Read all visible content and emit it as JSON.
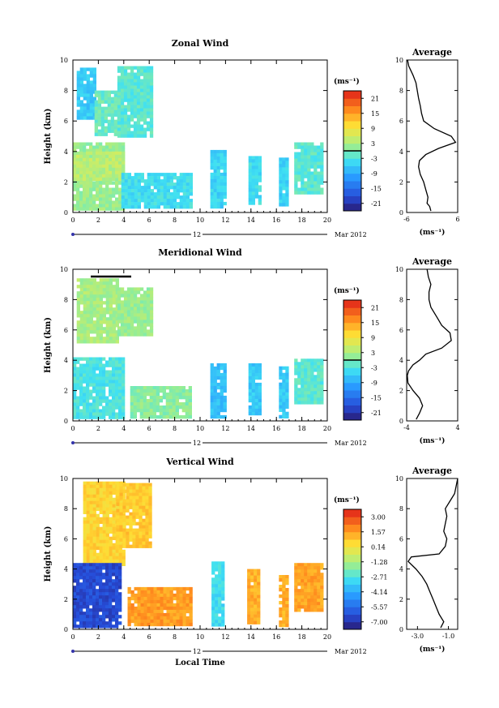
{
  "chart_data": [
    {
      "type": "heatmap",
      "title": "Zonal Wind",
      "xlabel": "",
      "ylabel": "Height (km)",
      "xlim": [
        0,
        20
      ],
      "ylim": [
        0,
        10
      ],
      "x_ticks": [
        "0",
        "2",
        "4",
        "6",
        "8",
        "10",
        "12",
        "14",
        "16",
        "18",
        "20"
      ],
      "y_ticks": [
        "0",
        "2",
        "4",
        "6",
        "8",
        "10"
      ],
      "date_day": "12",
      "date_label": "Mar 2012",
      "colorbar": {
        "unit": "(ms⁻¹)",
        "ticks": [
          "-21",
          "-15",
          "-9",
          "-3",
          "3",
          "9",
          "15",
          "21"
        ],
        "range": [
          -24,
          24
        ],
        "zero_line": 0
      },
      "data_blocks": [
        {
          "x": [
            0.3,
            1.7
          ],
          "y": [
            6.3,
            9.5
          ],
          "value": -6
        },
        {
          "x": [
            1.7,
            3.5
          ],
          "y": [
            5.2,
            8.0
          ],
          "value": -1
        },
        {
          "x": [
            3.5,
            6.2
          ],
          "y": [
            5.0,
            9.6
          ],
          "value": -2
        },
        {
          "x": [
            0.0,
            3.9
          ],
          "y": [
            0.3,
            4.6
          ],
          "value": 2
        },
        {
          "x": [
            0.0,
            3.9
          ],
          "y": [
            2.2,
            4.0
          ],
          "value": 4
        },
        {
          "x": [
            3.8,
            9.3
          ],
          "y": [
            0.3,
            2.6
          ],
          "value": -4
        },
        {
          "x": [
            10.8,
            11.9
          ],
          "y": [
            0.3,
            4.1
          ],
          "value": -5
        },
        {
          "x": [
            13.8,
            14.7
          ],
          "y": [
            0.6,
            3.7
          ],
          "value": -4
        },
        {
          "x": [
            16.2,
            16.9
          ],
          "y": [
            0.6,
            3.6
          ],
          "value": -5
        },
        {
          "x": [
            17.4,
            19.5
          ],
          "y": [
            1.2,
            4.6
          ],
          "value": -2
        }
      ],
      "average": {
        "title": "Average",
        "xlabel": "(ms⁻¹)",
        "xlim": [
          -6,
          6
        ],
        "x_ticks": [
          "-6",
          "6"
        ],
        "ylim": [
          0,
          10
        ],
        "y_ticks": [
          "0",
          "2",
          "4",
          "6",
          "8",
          "10"
        ],
        "x": [
          -0.3,
          -0.6,
          -1.2,
          -1.0,
          -1.5,
          -2.0,
          -2.8,
          -3.2,
          -3.0,
          -1.5,
          1.5,
          5.5,
          4.5,
          0.5,
          -2.0,
          -2.5,
          -2.8,
          -3.2,
          -3.5,
          -3.8,
          -4.5,
          -5.0,
          -5.5,
          -5.8
        ],
        "y": [
          0.1,
          0.4,
          0.6,
          1.0,
          1.5,
          2.0,
          2.5,
          3.0,
          3.4,
          3.8,
          4.2,
          4.6,
          5.0,
          5.5,
          6.0,
          6.5,
          7.0,
          7.5,
          8.0,
          8.5,
          9.0,
          9.3,
          9.6,
          10.0
        ]
      }
    },
    {
      "type": "heatmap",
      "title": "Meridional Wind",
      "xlabel": "",
      "ylabel": "Height (km)",
      "xlim": [
        0,
        20
      ],
      "ylim": [
        0,
        10
      ],
      "x_ticks": [
        "0",
        "2",
        "4",
        "6",
        "8",
        "10",
        "12",
        "14",
        "16",
        "18",
        "20"
      ],
      "y_ticks": [
        "0",
        "2",
        "4",
        "6",
        "8",
        "10"
      ],
      "date_day": "12",
      "date_label": "Mar 2012",
      "colorbar": {
        "unit": "(ms⁻¹)",
        "ticks": [
          "-21",
          "-15",
          "-9",
          "-3",
          "3",
          "9",
          "15",
          "21"
        ],
        "range": [
          -24,
          24
        ],
        "zero_line": 0
      },
      "data_blocks": [
        {
          "x": [
            0.3,
            3.5
          ],
          "y": [
            5.3,
            9.4
          ],
          "value": 3
        },
        {
          "x": [
            3.5,
            6.2
          ],
          "y": [
            5.6,
            8.8
          ],
          "value": 2
        },
        {
          "x": [
            0.0,
            3.9
          ],
          "y": [
            0.3,
            4.2
          ],
          "value": -3
        },
        {
          "x": [
            4.5,
            9.3
          ],
          "y": [
            0.3,
            2.3
          ],
          "value": 1
        },
        {
          "x": [
            10.8,
            11.9
          ],
          "y": [
            0.3,
            3.8
          ],
          "value": -7
        },
        {
          "x": [
            13.8,
            14.6
          ],
          "y": [
            0.5,
            3.8
          ],
          "value": -6
        },
        {
          "x": [
            16.2,
            16.8
          ],
          "y": [
            0.3,
            3.6
          ],
          "value": -6
        },
        {
          "x": [
            17.4,
            19.5
          ],
          "y": [
            1.2,
            4.1
          ],
          "value": -2
        }
      ],
      "average": {
        "title": "Average",
        "xlabel": "(ms⁻¹)",
        "xlim": [
          -4,
          4
        ],
        "x_ticks": [
          "-4",
          "4"
        ],
        "ylim": [
          0,
          10
        ],
        "y_ticks": [
          "0",
          "2",
          "4",
          "6",
          "8",
          "10"
        ],
        "x": [
          -2.5,
          -2.0,
          -1.5,
          -2.0,
          -3.0,
          -3.8,
          -3.9,
          -3.7,
          -3.0,
          -2.0,
          -1.0,
          1.5,
          3.0,
          2.8,
          1.5,
          0.8,
          -0.2,
          -0.5,
          -0.5,
          -0.2,
          -0.6,
          -0.8
        ],
        "y": [
          0.1,
          0.5,
          1.0,
          1.5,
          2.0,
          2.5,
          3.0,
          3.3,
          3.7,
          4.0,
          4.4,
          4.8,
          5.3,
          5.8,
          6.3,
          6.8,
          7.5,
          8.0,
          8.5,
          9.0,
          9.5,
          10.0
        ]
      }
    },
    {
      "type": "heatmap",
      "title": "Vertical Wind",
      "xlabel": "Local Time",
      "ylabel": "Height (km)",
      "xlim": [
        0,
        20
      ],
      "ylim": [
        0,
        10
      ],
      "x_ticks": [
        "0",
        "2",
        "4",
        "6",
        "8",
        "10",
        "12",
        "14",
        "16",
        "18",
        "20"
      ],
      "y_ticks": [
        "0",
        "2",
        "4",
        "6",
        "8",
        "10"
      ],
      "date_day": "12",
      "date_label": "Mar 2012",
      "colorbar": {
        "unit": "(ms⁻¹)",
        "ticks": [
          "-7.00",
          "-5.57",
          "-4.14",
          "-2.71",
          "-1.28",
          "0.14",
          "1.57",
          "3.00"
        ],
        "range": [
          -7.72,
          3.72
        ]
      },
      "data_blocks": [
        {
          "x": [
            0.8,
            3.9
          ],
          "y": [
            4.4,
            9.8
          ],
          "value": 0.6
        },
        {
          "x": [
            3.4,
            6.2
          ],
          "y": [
            5.5,
            9.7
          ],
          "value": 0.8
        },
        {
          "x": [
            0.0,
            3.8
          ],
          "y": [
            0.2,
            4.4
          ],
          "value": -6.4
        },
        {
          "x": [
            4.3,
            9.3
          ],
          "y": [
            0.3,
            2.8
          ],
          "value": 1.6
        },
        {
          "x": [
            10.9,
            11.9
          ],
          "y": [
            0.3,
            4.5
          ],
          "value": -3.0
        },
        {
          "x": [
            13.7,
            14.6
          ],
          "y": [
            0.5,
            4.0
          ],
          "value": 1.3
        },
        {
          "x": [
            16.2,
            16.8
          ],
          "y": [
            0.3,
            3.6
          ],
          "value": 1.3
        },
        {
          "x": [
            17.4,
            19.5
          ],
          "y": [
            1.2,
            4.4
          ],
          "value": 1.5
        }
      ],
      "average": {
        "title": "Average",
        "xlabel": "(ms⁻¹)",
        "xlim": [
          -3.7,
          -0.4
        ],
        "x_ticks": [
          "-3.0",
          "-1.0"
        ],
        "ylim": [
          0,
          10
        ],
        "y_ticks": [
          "0",
          "2",
          "4",
          "6",
          "8",
          "10"
        ],
        "x": [
          -1.5,
          -1.3,
          -1.6,
          -1.8,
          -2.0,
          -2.2,
          -2.4,
          -2.7,
          -3.1,
          -3.4,
          -3.6,
          -3.4,
          -1.6,
          -1.2,
          -1.1,
          -1.3,
          -1.2,
          -1.1,
          -1.2,
          -0.9,
          -0.6,
          -0.4
        ],
        "y": [
          0.1,
          0.5,
          1.0,
          1.5,
          2.0,
          2.5,
          3.0,
          3.5,
          4.0,
          4.3,
          4.5,
          4.8,
          5.0,
          5.5,
          6.0,
          6.5,
          7.0,
          7.5,
          8.0,
          8.5,
          9.0,
          10.0
        ]
      }
    }
  ]
}
